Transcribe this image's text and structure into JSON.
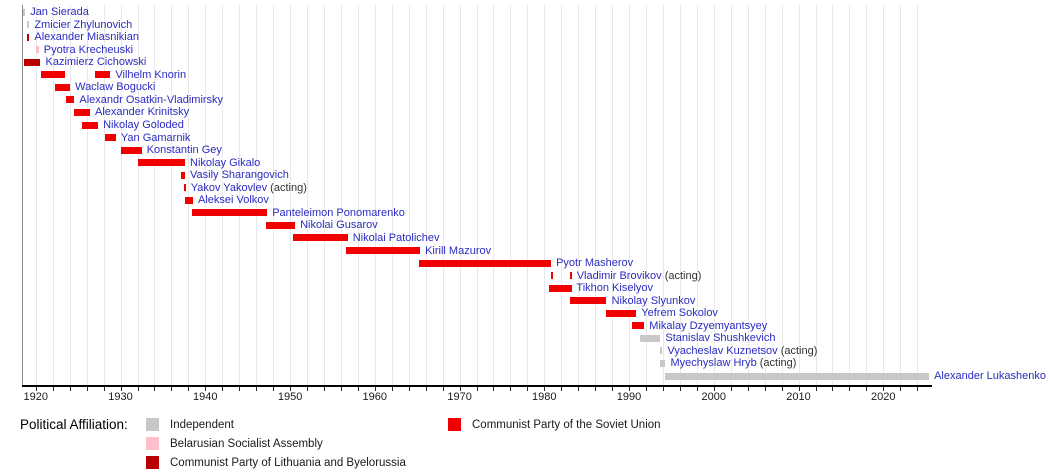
{
  "chart_data": {
    "type": "bar",
    "subtype": "horizontal-timeline-gantt",
    "description": "Timeline of leaders with bars spanning years in office, colored by political affiliation",
    "axis": {
      "unit": "year",
      "min": 1918.4,
      "max": 2025.8,
      "major_ticks": [
        1920,
        1930,
        1940,
        1950,
        1960,
        1970,
        1980,
        1990,
        2000,
        2010,
        2020
      ],
      "minor_tick_step": 2,
      "gridlines": true,
      "legend_position": "bottom"
    },
    "rows": [
      {
        "name": "Jan Sierada",
        "suffix": "",
        "party": "independent",
        "segments": [
          [
            1918.45,
            1918.75
          ]
        ]
      },
      {
        "name": "Zmicier Zhylunovich",
        "suffix": "",
        "party": "independent",
        "segments": [
          [
            1918.95,
            1919.25
          ]
        ]
      },
      {
        "name": "Alexander Miasnikian",
        "suffix": "",
        "party": "cplb",
        "segments": [
          [
            1918.95,
            1919.25
          ]
        ]
      },
      {
        "name": "Pyotra Krecheuski",
        "suffix": "",
        "party": "bsa",
        "segments": [
          [
            1920.0,
            1920.35
          ]
        ]
      },
      {
        "name": "Kazimierz Cichowski",
        "suffix": "",
        "party": "cplb",
        "segments": [
          [
            1918.6,
            1920.55
          ]
        ]
      },
      {
        "name": "Vilhelm Knorin",
        "suffix": "",
        "party": "cpsu",
        "segments": [
          [
            1920.6,
            1923.45
          ],
          [
            1927.0,
            1928.8
          ]
        ]
      },
      {
        "name": "Waclaw Bogucki",
        "suffix": "",
        "party": "cpsu",
        "segments": [
          [
            1922.25,
            1924.05
          ]
        ]
      },
      {
        "name": "Alexandr Osatkin-Vladimirsky",
        "suffix": "",
        "party": "cpsu",
        "segments": [
          [
            1923.6,
            1924.55
          ]
        ]
      },
      {
        "name": "Alexander Krinitsky",
        "suffix": "",
        "party": "cpsu",
        "segments": [
          [
            1924.5,
            1926.4
          ]
        ]
      },
      {
        "name": "Nikolay Goloded",
        "suffix": "",
        "party": "cpsu",
        "segments": [
          [
            1925.5,
            1927.35
          ]
        ]
      },
      {
        "name": "Yan Gamarnik",
        "suffix": "",
        "party": "cpsu",
        "segments": [
          [
            1928.2,
            1929.45
          ]
        ]
      },
      {
        "name": "Konstantin Gey",
        "suffix": "",
        "party": "cpsu",
        "segments": [
          [
            1930.0,
            1932.5
          ]
        ]
      },
      {
        "name": "Nikolay Gikalo",
        "suffix": "",
        "party": "cpsu",
        "segments": [
          [
            1932.1,
            1937.6
          ]
        ]
      },
      {
        "name": "Vasily Sharangovich",
        "suffix": "",
        "party": "cpsu",
        "segments": [
          [
            1937.15,
            1937.6
          ]
        ]
      },
      {
        "name": "Yakov Yakovlev",
        "suffix": " (acting)",
        "party": "cpsu",
        "segments": [
          [
            1937.45,
            1937.62
          ]
        ]
      },
      {
        "name": "Aleksei Volkov",
        "suffix": "",
        "party": "cpsu",
        "segments": [
          [
            1937.65,
            1938.55
          ]
        ]
      },
      {
        "name": "Panteleimon Ponomarenko",
        "suffix": "",
        "party": "cpsu",
        "segments": [
          [
            1938.45,
            1947.3
          ]
        ]
      },
      {
        "name": "Nikolai Gusarov",
        "suffix": "",
        "party": "cpsu",
        "segments": [
          [
            1947.1,
            1950.6
          ]
        ]
      },
      {
        "name": "Nikolai Patolichev",
        "suffix": "",
        "party": "cpsu",
        "segments": [
          [
            1950.4,
            1956.8
          ]
        ]
      },
      {
        "name": "Kirill Mazurov",
        "suffix": "",
        "party": "cpsu",
        "segments": [
          [
            1956.6,
            1965.35
          ]
        ]
      },
      {
        "name": "Pyotr Masherov",
        "suffix": "",
        "party": "cpsu",
        "segments": [
          [
            1965.2,
            1980.8
          ]
        ]
      },
      {
        "name": "Vladimir Brovikov",
        "suffix": " (acting)",
        "party": "cpsu",
        "segments": [
          [
            1980.82,
            1980.98
          ],
          [
            1983.0,
            1983.16
          ]
        ]
      },
      {
        "name": "Tikhon Kiselyov",
        "suffix": "",
        "party": "cpsu",
        "segments": [
          [
            1980.55,
            1983.2
          ]
        ]
      },
      {
        "name": "Nikolay Slyunkov",
        "suffix": "",
        "party": "cpsu",
        "segments": [
          [
            1983.05,
            1987.35
          ]
        ]
      },
      {
        "name": "Yefrem Sokolov",
        "suffix": "",
        "party": "cpsu",
        "segments": [
          [
            1987.3,
            1990.85
          ]
        ]
      },
      {
        "name": "Mikalay Dzyemyantsyey",
        "suffix": "",
        "party": "cpsu",
        "segments": [
          [
            1990.3,
            1991.8
          ]
        ]
      },
      {
        "name": "Stanislav Shushkevich",
        "suffix": "",
        "party": "independent",
        "segments": [
          [
            1991.3,
            1993.7
          ]
        ]
      },
      {
        "name": "Vyacheslav Kuznetsov",
        "suffix": " (acting)",
        "party": "independent",
        "segments": [
          [
            1993.7,
            1993.9
          ]
        ]
      },
      {
        "name": "Myechyslaw Hryb",
        "suffix": " (acting)",
        "party": "independent",
        "segments": [
          [
            1993.7,
            1994.3
          ]
        ]
      },
      {
        "name": "Alexander Lukashenko",
        "suffix": "",
        "party": "independent",
        "segments": [
          [
            1994.2,
            2025.4
          ]
        ]
      }
    ]
  },
  "legend": {
    "title": "Political Affiliation:",
    "items": [
      {
        "key": "independent",
        "label": "Independent"
      },
      {
        "key": "bsa",
        "label": "Belarusian Socialist Assembly"
      },
      {
        "key": "cplb",
        "label": "Communist Party of Lithuania and Byelorussia"
      },
      {
        "key": "cpsu",
        "label": "Communist Party of the Soviet Union"
      }
    ]
  },
  "colors": {
    "independent": "#c8c8c8",
    "bsa": "#ffc0cb",
    "cplb": "#b80000",
    "cpsu": "#f00000",
    "link_text": "#2b2bc2",
    "acting_text": "#333333",
    "axis": "#000000",
    "gridline": "#e9e9e9"
  }
}
